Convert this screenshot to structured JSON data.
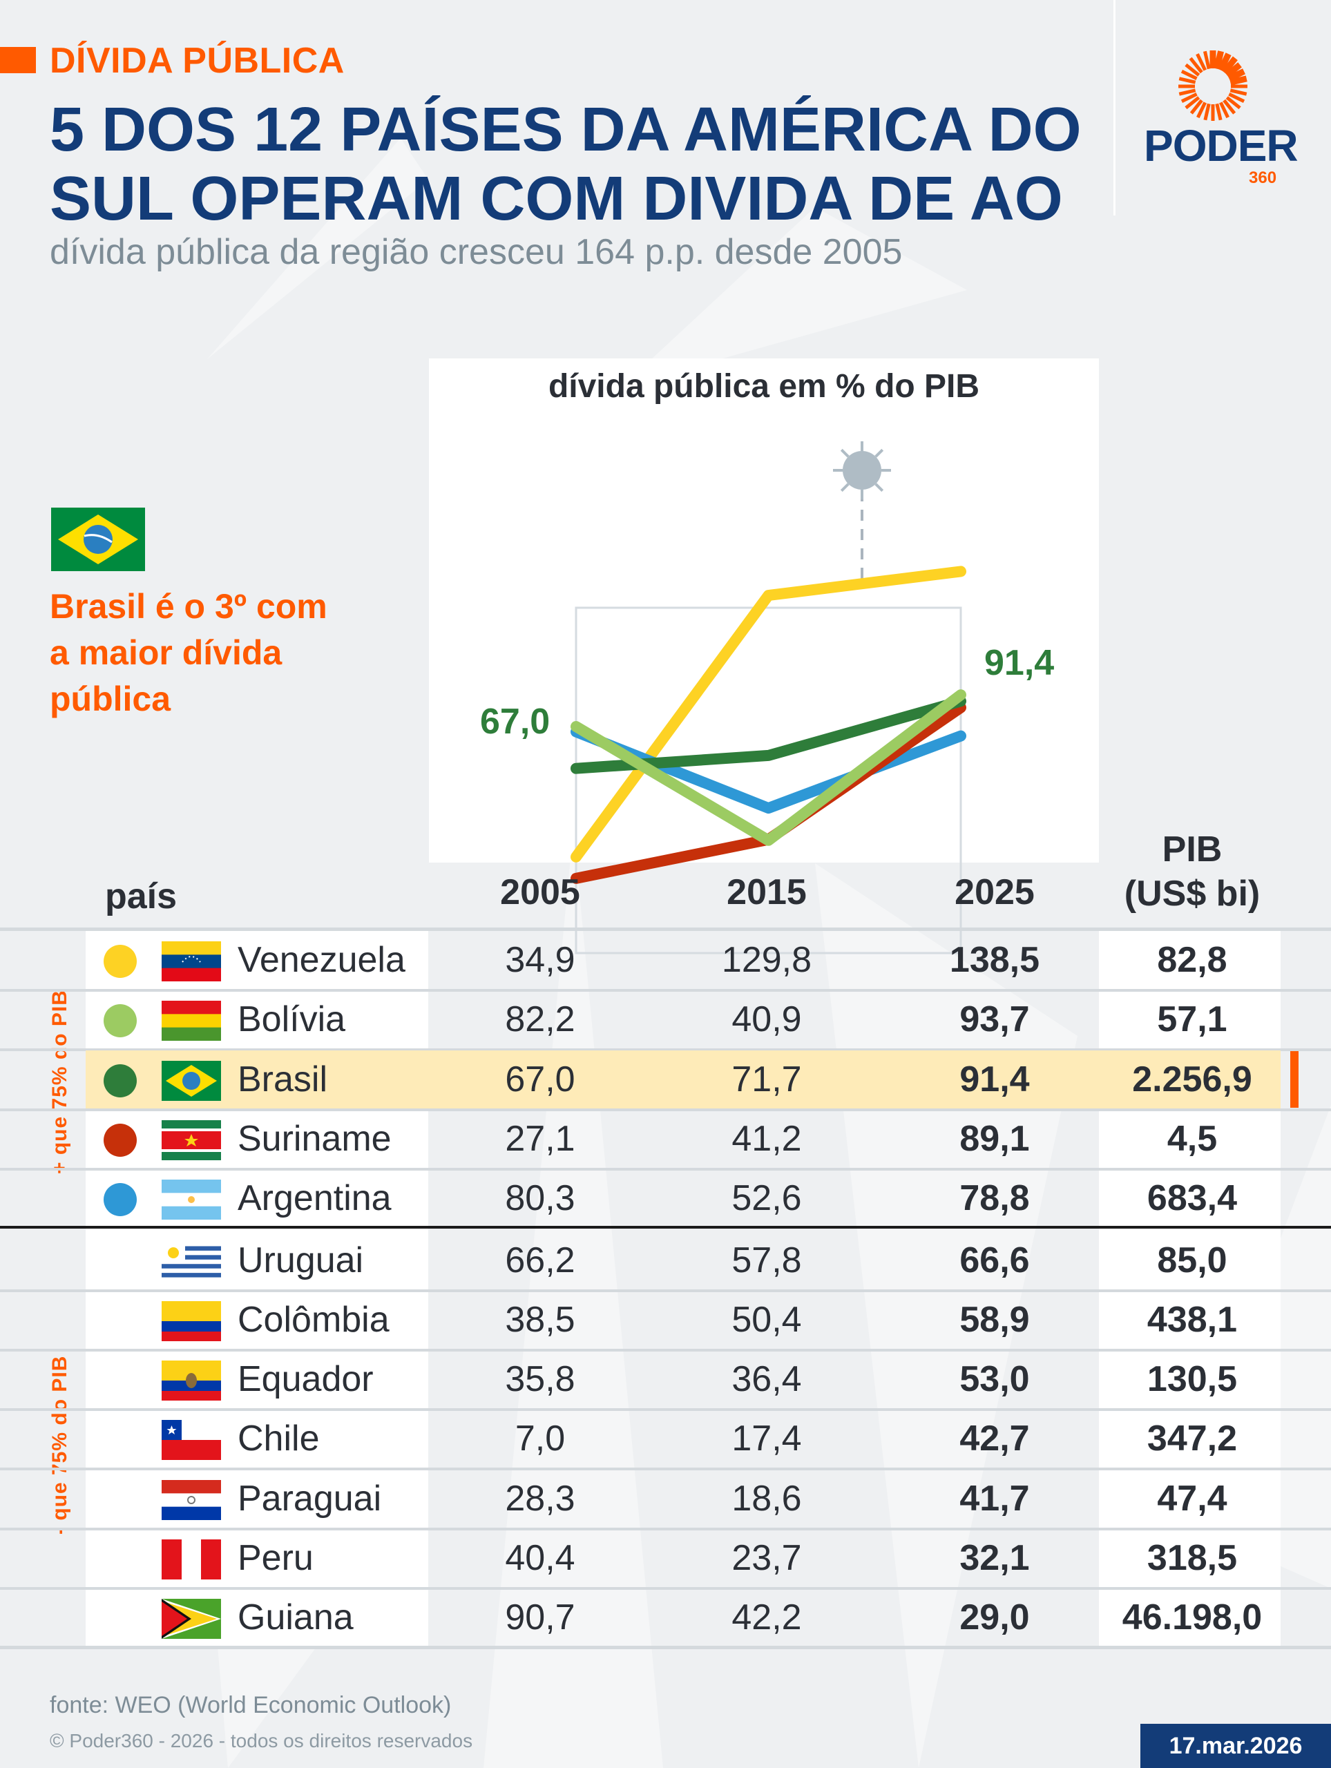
{
  "header": {
    "kicker": "DÍVIDA PÚBLICA",
    "title": "5 DOS 12 PAÍSES DA AMÉRICA DO SUL OPERAM COM DIVIDA DE AO",
    "subtitle": "dívida pública da região cresceu 164 p.p. desde 2005"
  },
  "logo": {
    "name": "PODER",
    "suffix": "360",
    "icon": "sun-burst-icon"
  },
  "callout": {
    "flag": "brazil-flag",
    "text": "Brasil é o 3º com a maior dívida pública"
  },
  "colors": {
    "accent": "#ff5a00",
    "brand_blue": "#133c78",
    "highlight_row": "#feebb8",
    "venezuela": "#fdd224",
    "bolivia": "#9ccb62",
    "brasil": "#2e7d3a",
    "suriname": "#c6300a",
    "argentina": "#2e98d6"
  },
  "chart_data": {
    "type": "line",
    "title": "dívida pública em % do PIB",
    "x": [
      "2005",
      "2015",
      "2025"
    ],
    "ylim": [
      0,
      140
    ],
    "grid": false,
    "annotation": {
      "label": "covid-icon",
      "position_between": [
        "2015",
        "2025"
      ]
    },
    "highlight_labels": {
      "start": "67,0",
      "end": "91,4",
      "series": "Brasil"
    },
    "series": [
      {
        "name": "Venezuela",
        "color": "#fdd224",
        "values": [
          34.9,
          129.8,
          138.5
        ]
      },
      {
        "name": "Argentina",
        "color": "#2e98d6",
        "values": [
          80.3,
          52.6,
          78.8
        ]
      },
      {
        "name": "Suriname",
        "color": "#c6300a",
        "values": [
          27.1,
          41.2,
          89.1
        ]
      },
      {
        "name": "Brasil",
        "color": "#2e7d3a",
        "values": [
          67.0,
          71.7,
          91.4
        ]
      },
      {
        "name": "Bolívia",
        "color": "#9ccb62",
        "values": [
          82.2,
          40.9,
          93.7
        ]
      }
    ]
  },
  "table": {
    "headers": {
      "country": "país",
      "y2005": "2005",
      "y2015": "2015",
      "y2025": "2025",
      "pib_line1": "PIB",
      "pib_line2": "(US$ bi)"
    },
    "group_above": "+ que 75% do PIB",
    "group_below": "- que 75% do PIB",
    "rows": [
      {
        "country": "Venezuela",
        "flag": "venezuela",
        "dot": "#fdd224",
        "v2005": "34,9",
        "v2015": "129,8",
        "v2025": "138,5",
        "pib": "82,8"
      },
      {
        "country": "Bolívia",
        "flag": "bolivia",
        "dot": "#9ccb62",
        "v2005": "82,2",
        "v2015": "40,9",
        "v2025": "93,7",
        "pib": "57,1"
      },
      {
        "country": "Brasil",
        "flag": "brasil",
        "dot": "#2e7d3a",
        "v2005": "67,0",
        "v2015": "71,7",
        "v2025": "91,4",
        "pib": "2.256,9",
        "highlight": true
      },
      {
        "country": "Suriname",
        "flag": "suriname",
        "dot": "#c6300a",
        "v2005": "27,1",
        "v2015": "41,2",
        "v2025": "89,1",
        "pib": "4,5"
      },
      {
        "country": "Argentina",
        "flag": "argentina",
        "dot": "#2e98d6",
        "v2005": "80,3",
        "v2015": "52,6",
        "v2025": "78,8",
        "pib": "683,4"
      },
      {
        "country": "Uruguai",
        "flag": "uruguai",
        "v2005": "66,2",
        "v2015": "57,8",
        "v2025": "66,6",
        "pib": "85,0"
      },
      {
        "country": "Colômbia",
        "flag": "colombia",
        "v2005": "38,5",
        "v2015": "50,4",
        "v2025": "58,9",
        "pib": "438,1"
      },
      {
        "country": "Equador",
        "flag": "equador",
        "v2005": "35,8",
        "v2015": "36,4",
        "v2025": "53,0",
        "pib": "130,5"
      },
      {
        "country": "Chile",
        "flag": "chile",
        "v2005": "7,0",
        "v2015": "17,4",
        "v2025": "42,7",
        "pib": "347,2"
      },
      {
        "country": "Paraguai",
        "flag": "paraguai",
        "v2005": "28,3",
        "v2015": "18,6",
        "v2025": "41,7",
        "pib": "47,4"
      },
      {
        "country": "Peru",
        "flag": "peru",
        "v2005": "40,4",
        "v2015": "23,7",
        "v2025": "32,1",
        "pib": "318,5"
      },
      {
        "country": "Guiana",
        "flag": "guiana",
        "v2005": "90,7",
        "v2015": "42,2",
        "v2025": "29,0",
        "pib": "46.198,0"
      }
    ]
  },
  "footer": {
    "source": "fonte: WEO (World Economic Outlook)",
    "copyright": "© Poder360 - 2026 - todos os direitos reservados",
    "date": "17.mar.2026"
  }
}
